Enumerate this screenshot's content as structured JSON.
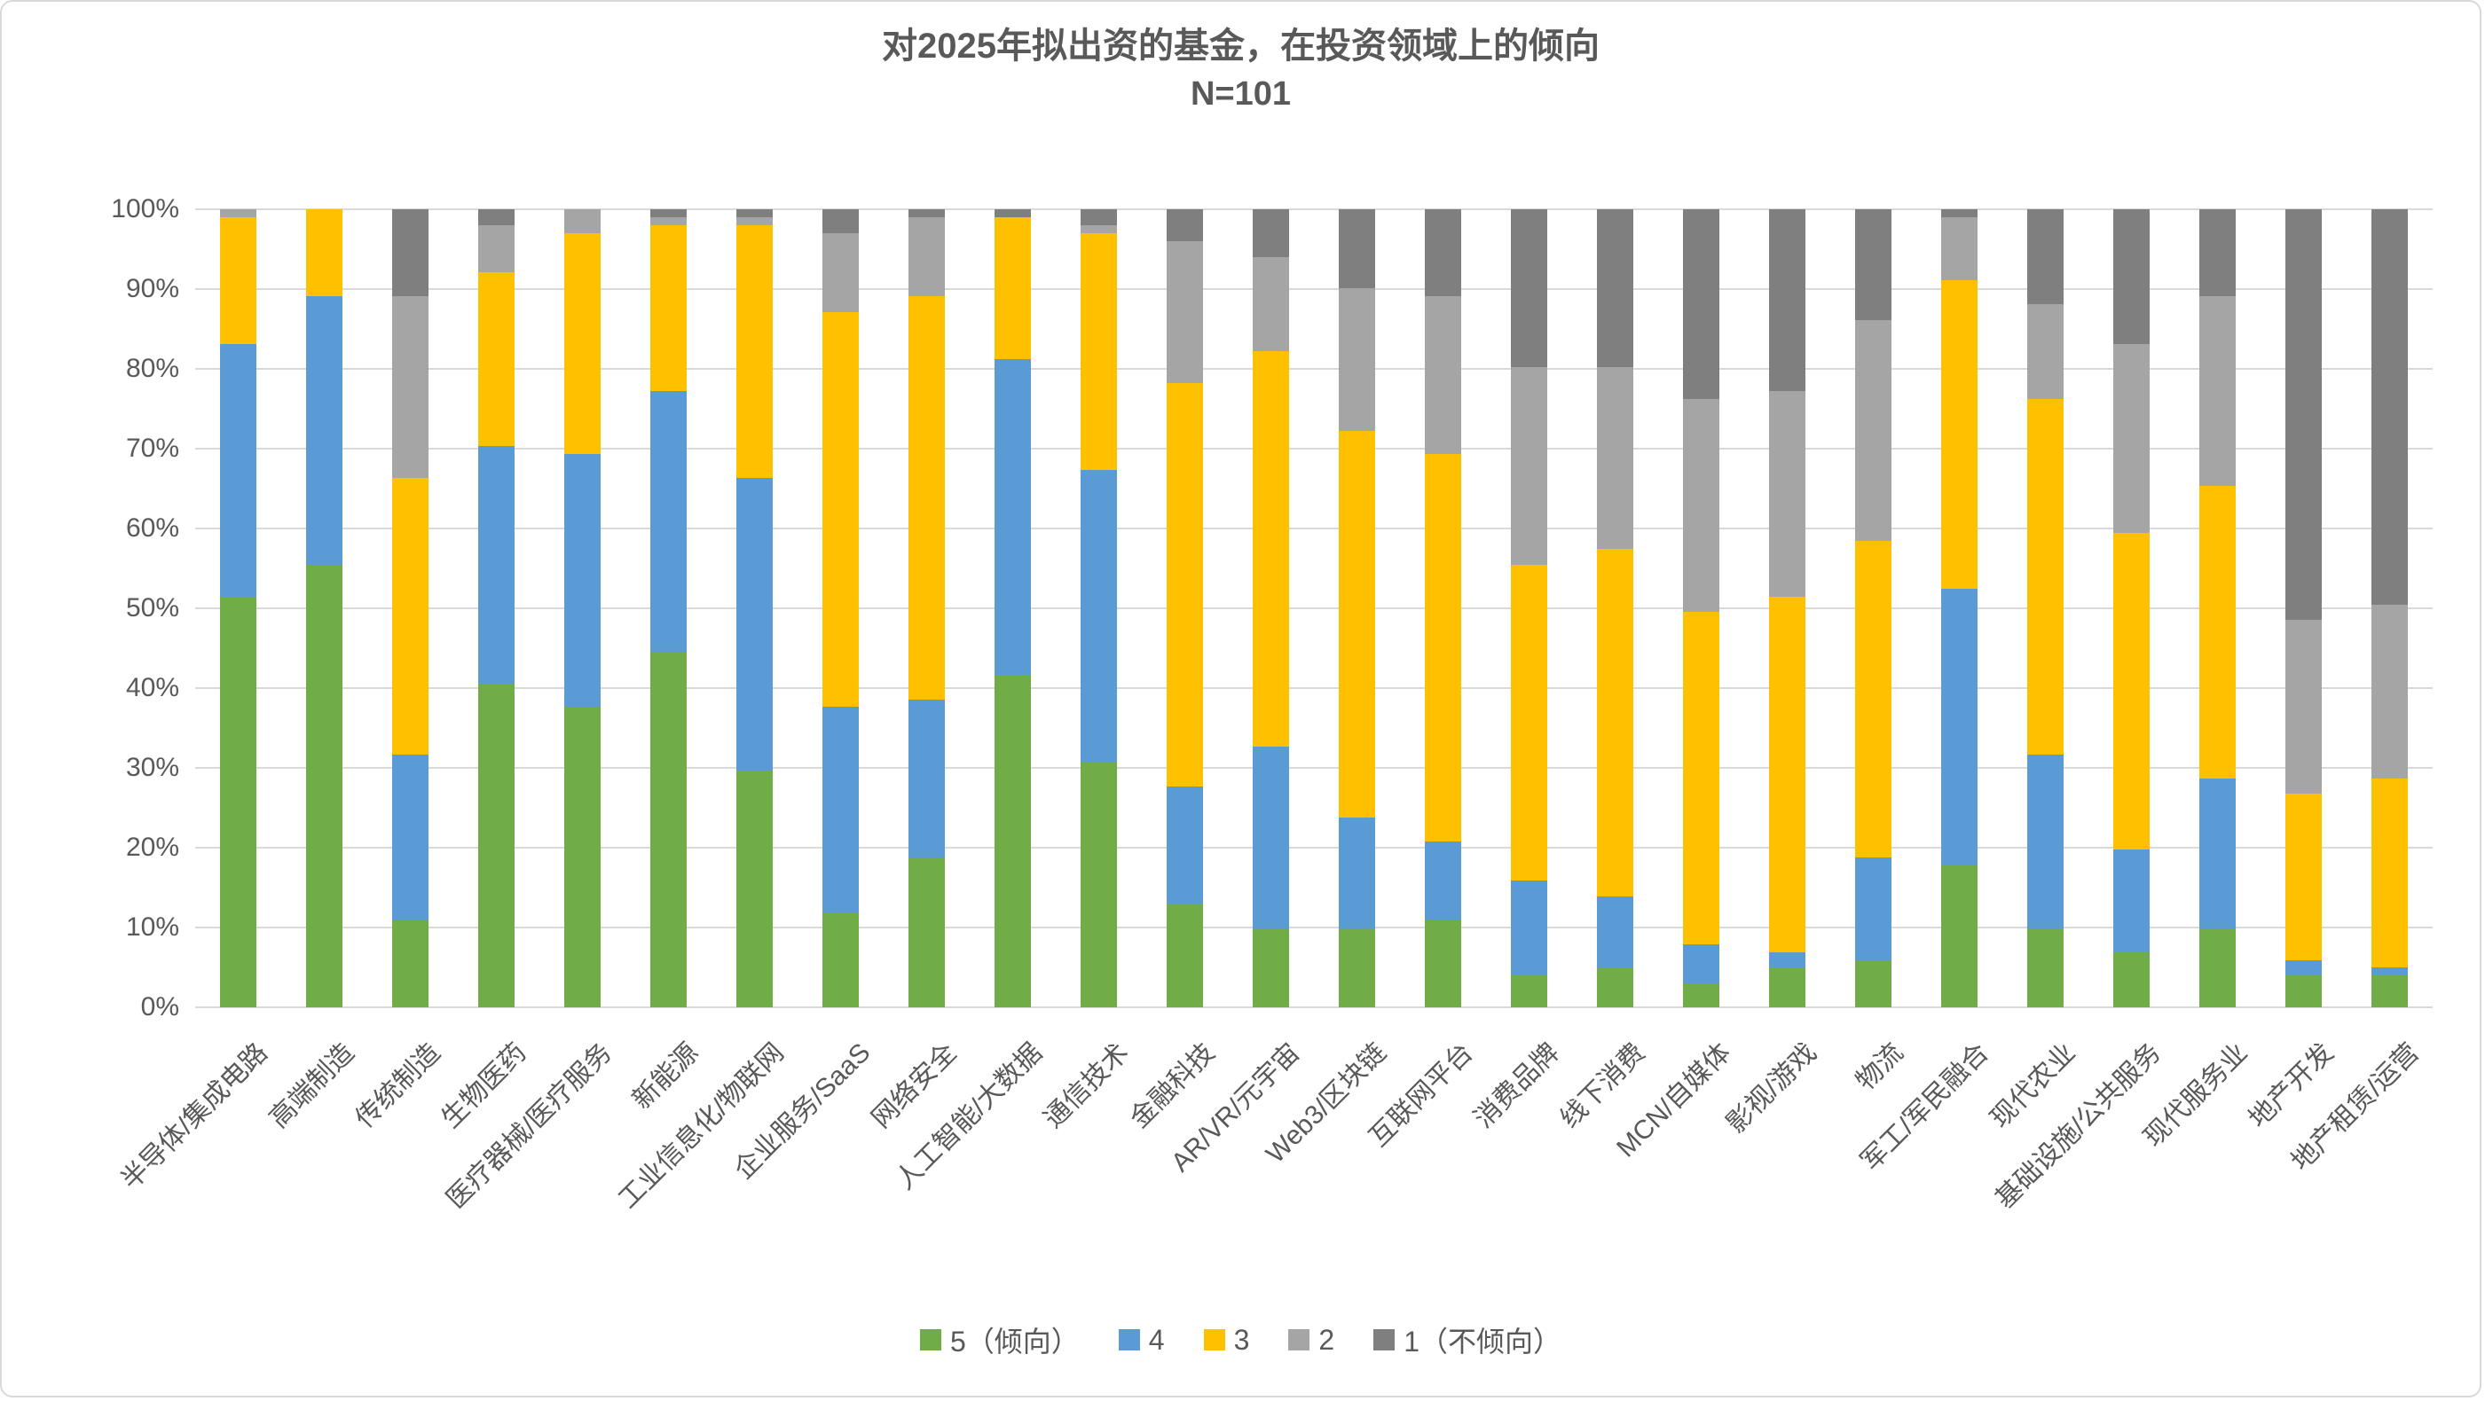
{
  "title": {
    "line1": "对2025年拟出资的基金，在投资领域上的倾向",
    "line2": "N=101"
  },
  "y_axis": {
    "tick_labels": [
      "100%",
      "90%",
      "80%",
      "70%",
      "60%",
      "50%",
      "40%",
      "30%",
      "20%",
      "10%",
      "0%"
    ],
    "min": 0,
    "max": 100
  },
  "legend": {
    "items": [
      {
        "label": "5（倾向）",
        "color": "#70AD47"
      },
      {
        "label": "4",
        "color": "#5B9BD5"
      },
      {
        "label": "3",
        "color": "#FFC000"
      },
      {
        "label": "2",
        "color": "#A5A5A5"
      },
      {
        "label": "1（不倾向）",
        "color": "#7F7F7F"
      }
    ]
  },
  "chart_data": {
    "type": "bar",
    "subtype": "100%-stacked-column",
    "n_respondents": 101,
    "note": "values are response counts out of N=101; each column is rendered as percent of 101",
    "title": "对2025年拟出资的基金，在投资领域上的倾向",
    "subtitle": "N=101",
    "ylabel": "",
    "xlabel": "",
    "ylim": [
      0,
      100
    ],
    "grid": true,
    "legend_position": "bottom",
    "categories": [
      "半导体/集成电路",
      "高端制造",
      "传统制造",
      "生物医药",
      "医疗器械/医疗服务",
      "新能源",
      "工业信息化/物联网",
      "企业服务/SaaS",
      "网络安全",
      "人工智能/大数据",
      "通信技术",
      "金融科技",
      "AR/VR/元宇宙",
      "Web3/区块链",
      "互联网平台",
      "消费品牌",
      "线下消费",
      "MCN/自媒体",
      "影视/游戏",
      "物流",
      "军工/军民融合",
      "现代农业",
      "基础设施/公共服务",
      "现代服务业",
      "地产开发",
      "地产租赁/运营"
    ],
    "series": [
      {
        "name": "5（倾向）",
        "color": "#70AD47",
        "values": [
          52,
          56,
          11,
          41,
          38,
          45,
          30,
          12,
          19,
          42,
          31,
          13,
          10,
          10,
          11,
          4,
          5,
          3,
          5,
          6,
          18,
          10,
          7,
          10,
          4,
          4
        ]
      },
      {
        "name": "4",
        "color": "#5B9BD5",
        "values": [
          32,
          34,
          21,
          30,
          32,
          33,
          37,
          26,
          20,
          40,
          37,
          15,
          23,
          14,
          10,
          12,
          9,
          5,
          2,
          13,
          35,
          22,
          13,
          19,
          2,
          1
        ]
      },
      {
        "name": "3",
        "color": "#FFC000",
        "values": [
          16,
          11,
          35,
          22,
          28,
          21,
          32,
          50,
          51,
          18,
          30,
          51,
          50,
          49,
          49,
          40,
          44,
          42,
          45,
          40,
          39,
          45,
          40,
          37,
          21,
          24
        ]
      },
      {
        "name": "2",
        "color": "#A5A5A5",
        "values": [
          1,
          0,
          23,
          6,
          3,
          1,
          1,
          10,
          10,
          0,
          1,
          18,
          12,
          18,
          20,
          25,
          23,
          27,
          26,
          28,
          8,
          12,
          24,
          24,
          22,
          22
        ]
      },
      {
        "name": "1（不倾向）",
        "color": "#7F7F7F",
        "values": [
          0,
          0,
          11,
          2,
          0,
          1,
          1,
          3,
          1,
          1,
          2,
          4,
          6,
          10,
          11,
          20,
          20,
          24,
          23,
          14,
          1,
          12,
          17,
          11,
          52,
          50
        ]
      }
    ]
  }
}
